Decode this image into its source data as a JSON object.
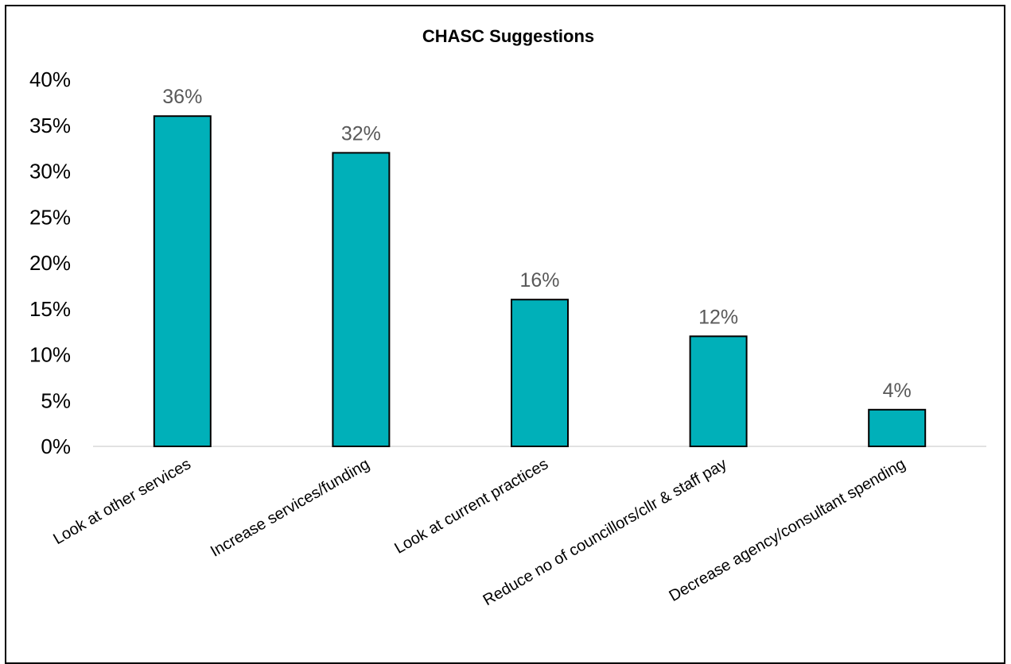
{
  "chart_data": {
    "type": "bar",
    "title": "CHASC Suggestions",
    "categories": [
      "Look at other services",
      "Increase services/funding",
      "Look at current practices",
      "Reduce no of councillors/cllr & staff pay",
      "Decrease agency/consultant spending"
    ],
    "values": [
      36,
      32,
      16,
      12,
      4
    ],
    "data_labels": [
      "36%",
      "32%",
      "16%",
      "12%",
      "4%"
    ],
    "ylim": [
      0,
      40
    ],
    "yticks": [
      0,
      5,
      10,
      15,
      20,
      25,
      30,
      35,
      40
    ],
    "ytick_labels": [
      "0%",
      "5%",
      "10%",
      "15%",
      "20%",
      "25%",
      "30%",
      "35%",
      "40%"
    ],
    "xlabel": "",
    "ylabel": "",
    "grid": false,
    "legend": "none",
    "bar_color": "#00B0B9",
    "bar_edge_color": "#000000"
  }
}
